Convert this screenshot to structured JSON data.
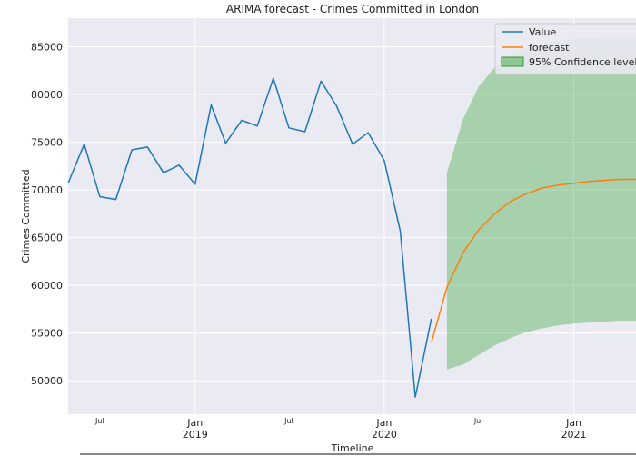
{
  "chart_data": {
    "type": "line",
    "title": "ARIMA forecast - Crimes Committed in London",
    "xlabel": "Timeline",
    "ylabel": "Crimes Committed",
    "ylim": [
      46500,
      88000
    ],
    "xlim": [
      "2018-05-01",
      "2021-05-01"
    ],
    "grid": true,
    "legend_position": "top-right",
    "yticks": [
      50000,
      55000,
      60000,
      65000,
      70000,
      75000,
      80000,
      85000
    ],
    "xticks_major": [
      {
        "date": "2019-01-01",
        "label": "Jan",
        "year": "2019"
      },
      {
        "date": "2020-01-01",
        "label": "Jan",
        "year": "2020"
      },
      {
        "date": "2021-01-01",
        "label": "Jan",
        "year": "2021"
      }
    ],
    "xticks_minor": [
      {
        "date": "2018-07-01",
        "label": "Jul"
      },
      {
        "date": "2019-07-01",
        "label": "Jul"
      },
      {
        "date": "2020-07-01",
        "label": "Jul"
      }
    ],
    "series": [
      {
        "name": "Value",
        "color": "#1f77b4",
        "points": [
          [
            "2018-05-01",
            70700
          ],
          [
            "2018-06-01",
            74800
          ],
          [
            "2018-07-01",
            69300
          ],
          [
            "2018-08-01",
            69000
          ],
          [
            "2018-09-01",
            74200
          ],
          [
            "2018-10-01",
            74500
          ],
          [
            "2018-11-01",
            71800
          ],
          [
            "2018-12-01",
            72600
          ],
          [
            "2019-01-01",
            70600
          ],
          [
            "2019-02-01",
            78900
          ],
          [
            "2019-03-01",
            74900
          ],
          [
            "2019-04-01",
            77300
          ],
          [
            "2019-05-01",
            76700
          ],
          [
            "2019-06-01",
            81700
          ],
          [
            "2019-07-01",
            76500
          ],
          [
            "2019-08-01",
            76100
          ],
          [
            "2019-09-01",
            81400
          ],
          [
            "2019-10-01",
            78800
          ],
          [
            "2019-11-01",
            74800
          ],
          [
            "2019-12-01",
            76000
          ],
          [
            "2020-01-01",
            73100
          ],
          [
            "2020-02-01",
            65700
          ],
          [
            "2020-03-01",
            48300
          ],
          [
            "2020-04-01",
            56500
          ]
        ]
      },
      {
        "name": "forecast",
        "color": "#ff7f0e",
        "points": [
          [
            "2020-04-01",
            54000
          ],
          [
            "2020-05-01",
            59800
          ],
          [
            "2020-06-01",
            63400
          ],
          [
            "2020-07-01",
            65800
          ],
          [
            "2020-08-01",
            67500
          ],
          [
            "2020-09-01",
            68800
          ],
          [
            "2020-10-01",
            69600
          ],
          [
            "2020-11-01",
            70200
          ],
          [
            "2020-12-01",
            70500
          ],
          [
            "2021-01-01",
            70700
          ],
          [
            "2021-02-01",
            70900
          ],
          [
            "2021-03-01",
            71000
          ],
          [
            "2021-04-01",
            71100
          ],
          [
            "2021-05-01",
            71100
          ]
        ]
      }
    ],
    "confidence_band": {
      "name": "95% Confidence level",
      "color": "#2ca02c",
      "opacity": 0.35,
      "points": [
        [
          "2020-05-01",
          51200,
          71800
        ],
        [
          "2020-06-01",
          51700,
          77400
        ],
        [
          "2020-07-01",
          52700,
          80800
        ],
        [
          "2020-08-01",
          53700,
          82800
        ],
        [
          "2020-09-01",
          54500,
          84100
        ],
        [
          "2020-10-01",
          55100,
          84900
        ],
        [
          "2020-11-01",
          55500,
          85300
        ],
        [
          "2020-12-01",
          55800,
          85600
        ],
        [
          "2021-01-01",
          56000,
          85800
        ],
        [
          "2021-02-01",
          56100,
          85900
        ],
        [
          "2021-03-01",
          56200,
          86000
        ],
        [
          "2021-04-01",
          56300,
          86000
        ],
        [
          "2021-05-01",
          56300,
          86000
        ]
      ]
    }
  }
}
